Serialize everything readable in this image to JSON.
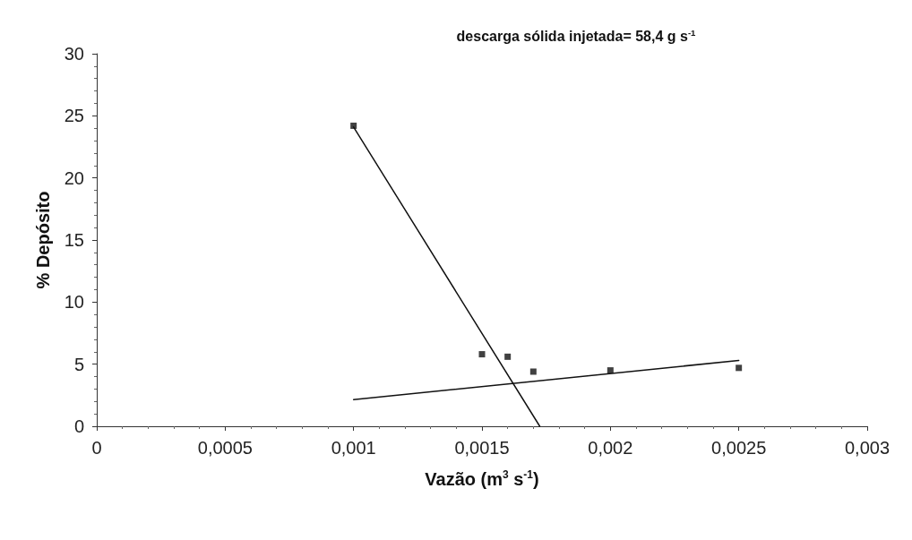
{
  "chart_data": {
    "type": "scatter",
    "title": "descarga sólida injetada= 58,4 g s$^{-1}$",
    "xlabel": "Vazão (m$^{3}$ s$^{-1}$)",
    "ylabel": "% Depósito",
    "xlim": [
      0,
      0.003
    ],
    "xticks": [
      {
        "value": 0,
        "label": "0"
      },
      {
        "value": 0.0005,
        "label": "0,0005"
      },
      {
        "value": 0.001,
        "label": "0,001"
      },
      {
        "value": 0.0015,
        "label": "0,0015"
      },
      {
        "value": 0.002,
        "label": "0,002"
      },
      {
        "value": 0.0025,
        "label": "0,0025"
      },
      {
        "value": 0.003,
        "label": "0,003"
      }
    ],
    "ylim": [
      0,
      30
    ],
    "yticks": [
      0,
      5,
      10,
      15,
      20,
      25,
      30
    ],
    "grid": false,
    "marker": "square",
    "series": [
      {
        "color": "#111111",
        "x": [
          0.001,
          0.0015,
          0.0016,
          0.0017,
          0.002,
          0.0025
        ],
        "values": [
          24.2,
          5.8,
          5.6,
          4.4,
          4.5,
          4.7
        ]
      },
      {
        "type": "line",
        "color": "#111111",
        "marker": "none",
        "line_style": "solid",
        "x": [
          0.001,
          0.001725
        ],
        "values": [
          24.1,
          0
        ]
      },
      {
        "type": "line",
        "color": "#111111",
        "marker": "none",
        "line_style": "solid",
        "x": [
          0.001,
          0.0025
        ],
        "values": [
          2.15,
          5.3
        ]
      }
    ]
  }
}
